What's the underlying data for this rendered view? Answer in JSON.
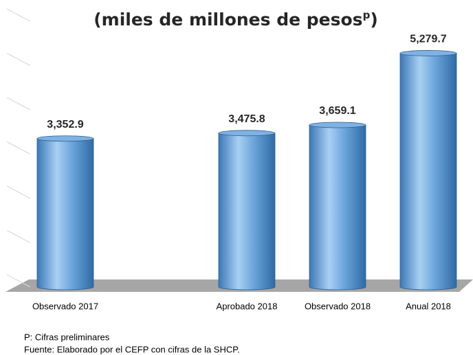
{
  "chart_data": {
    "type": "bar",
    "title": "(miles de millones de pesos",
    "title_superscript": "p",
    "title_end": ")",
    "categories": [
      "Observado 2017",
      null,
      "Aprobado 2018",
      "Observado 2018",
      "Anual 2018"
    ],
    "values": [
      3352.9,
      null,
      3475.8,
      3659.1,
      5279.7
    ],
    "value_labels": [
      "3,352.9",
      null,
      "3,475.8",
      "3,659.1",
      "5,279.7"
    ],
    "color": "#5b9bd5",
    "ylim": [
      0,
      6000
    ],
    "yticks": [
      0,
      1000,
      2000,
      3000,
      4000,
      5000,
      6000
    ],
    "grid": true,
    "notes": [
      "P: Cifras  preliminares",
      "Fuente: Elaborado  por el CEFP  con cifras de la SHCP."
    ]
  }
}
